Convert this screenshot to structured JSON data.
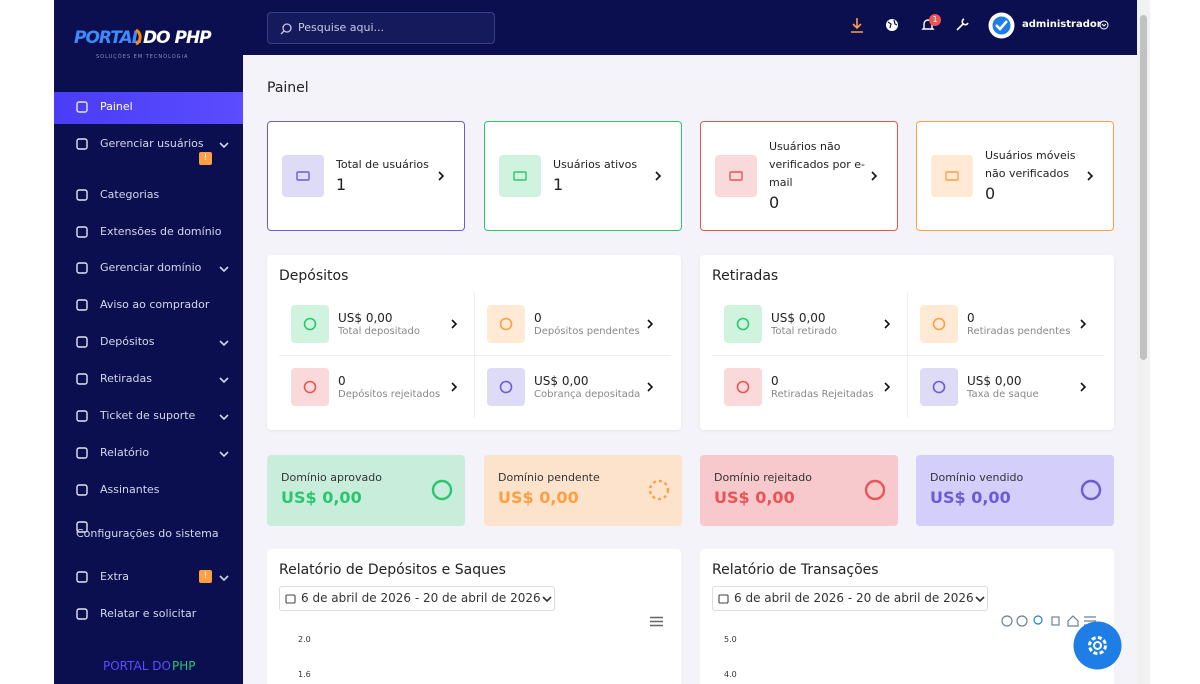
{
  "brand": {
    "logo_left": "PORTAL",
    "logo_right": "DO PHP",
    "tagline": "SOLUÇÕES EM TECNOLOGIA",
    "footer_left": "PORTAL DO",
    "footer_right": "PHP"
  },
  "sidebar": {
    "menu": [
      {
        "label": "Painel",
        "active": true
      },
      {
        "label": "Gerenciar usuários",
        "expandable": true,
        "badge": "!"
      },
      {
        "label": "Categorias"
      },
      {
        "label": "Extensões de domínio"
      },
      {
        "label": "Gerenciar domínio",
        "expandable": true
      },
      {
        "label": "Aviso ao comprador"
      },
      {
        "label": "Depósitos",
        "expandable": true
      },
      {
        "label": "Retiradas",
        "expandable": true
      },
      {
        "label": "Ticket de suporte",
        "expandable": true
      },
      {
        "label": "Relatório",
        "expandable": true
      },
      {
        "label": "Assinantes"
      },
      {
        "label": "Configurações do sistema"
      },
      {
        "label": "Extra",
        "expandable": true,
        "badge": "!"
      },
      {
        "label": "Relatar e solicitar"
      }
    ]
  },
  "topbar": {
    "search_placeholder": "Pesquise aqui...",
    "notification_count": 1,
    "user": "administrador"
  },
  "page_title": "Painel",
  "user_cards": [
    {
      "label": "Total de usuários",
      "value": 1,
      "color": "#6b5bd6"
    },
    {
      "label": "Usuários ativos",
      "value": 1,
      "color": "#28c76f"
    },
    {
      "label": "Usuários não verificados por e-mail",
      "value": 0,
      "color": "#ea5455"
    },
    {
      "label": "Usuários móveis não verificados",
      "value": 0,
      "color": "#ff9f43"
    }
  ],
  "panels": [
    {
      "title": "Depósitos",
      "items": [
        {
          "value": "US$ 0,00",
          "label": "Total depositado",
          "color": "#28c76f"
        },
        {
          "value": 0,
          "label": "Depósitos pendentes",
          "color": "#ff9f43"
        },
        {
          "value": 0,
          "label": "Depósitos rejeitados",
          "color": "#ea5455"
        },
        {
          "value": "US$ 0,00",
          "label": "Cobrança depositada",
          "color": "#6b5bd6"
        }
      ]
    },
    {
      "title": "Retiradas",
      "items": [
        {
          "value": "US$ 0,00",
          "label": "Total retirado",
          "color": "#28c76f"
        },
        {
          "value": 0,
          "label": "Retiradas pendentes",
          "color": "#ff9f43"
        },
        {
          "value": 0,
          "label": "Retiradas Rejeitadas",
          "color": "#ea5455"
        },
        {
          "value": "US$ 0,00",
          "label": "Taxa de saque",
          "color": "#6b5bd6"
        }
      ]
    }
  ],
  "domain_cards": [
    {
      "label": "Domínio aprovado",
      "value": "US$ 0,00",
      "color": "#28c76f",
      "background": "#c8eedb"
    },
    {
      "label": "Domínio pendente",
      "value": "US$ 0,00",
      "color": "#ff9f43",
      "background": "#fde3cb"
    },
    {
      "label": "Domínio rejeitado",
      "value": "US$ 0,00",
      "color": "#ea5455",
      "background": "#f7c9cc"
    },
    {
      "label": "Domínio vendido",
      "value": "US$ 0,00",
      "color": "#6b5bd6",
      "background": "#d3cefa"
    }
  ],
  "reports": [
    {
      "title": "Relatório de Depósitos e Saques",
      "date_range": "6 de abril de 2026 - 20 de abril de 2026",
      "yticks": [
        "2.0",
        "1.6"
      ]
    },
    {
      "title": "Relatório de Transações",
      "date_range": "6 de abril de 2026 - 20 de abril de 2026",
      "yticks": [
        "5.0",
        "4.0"
      ]
    }
  ]
}
